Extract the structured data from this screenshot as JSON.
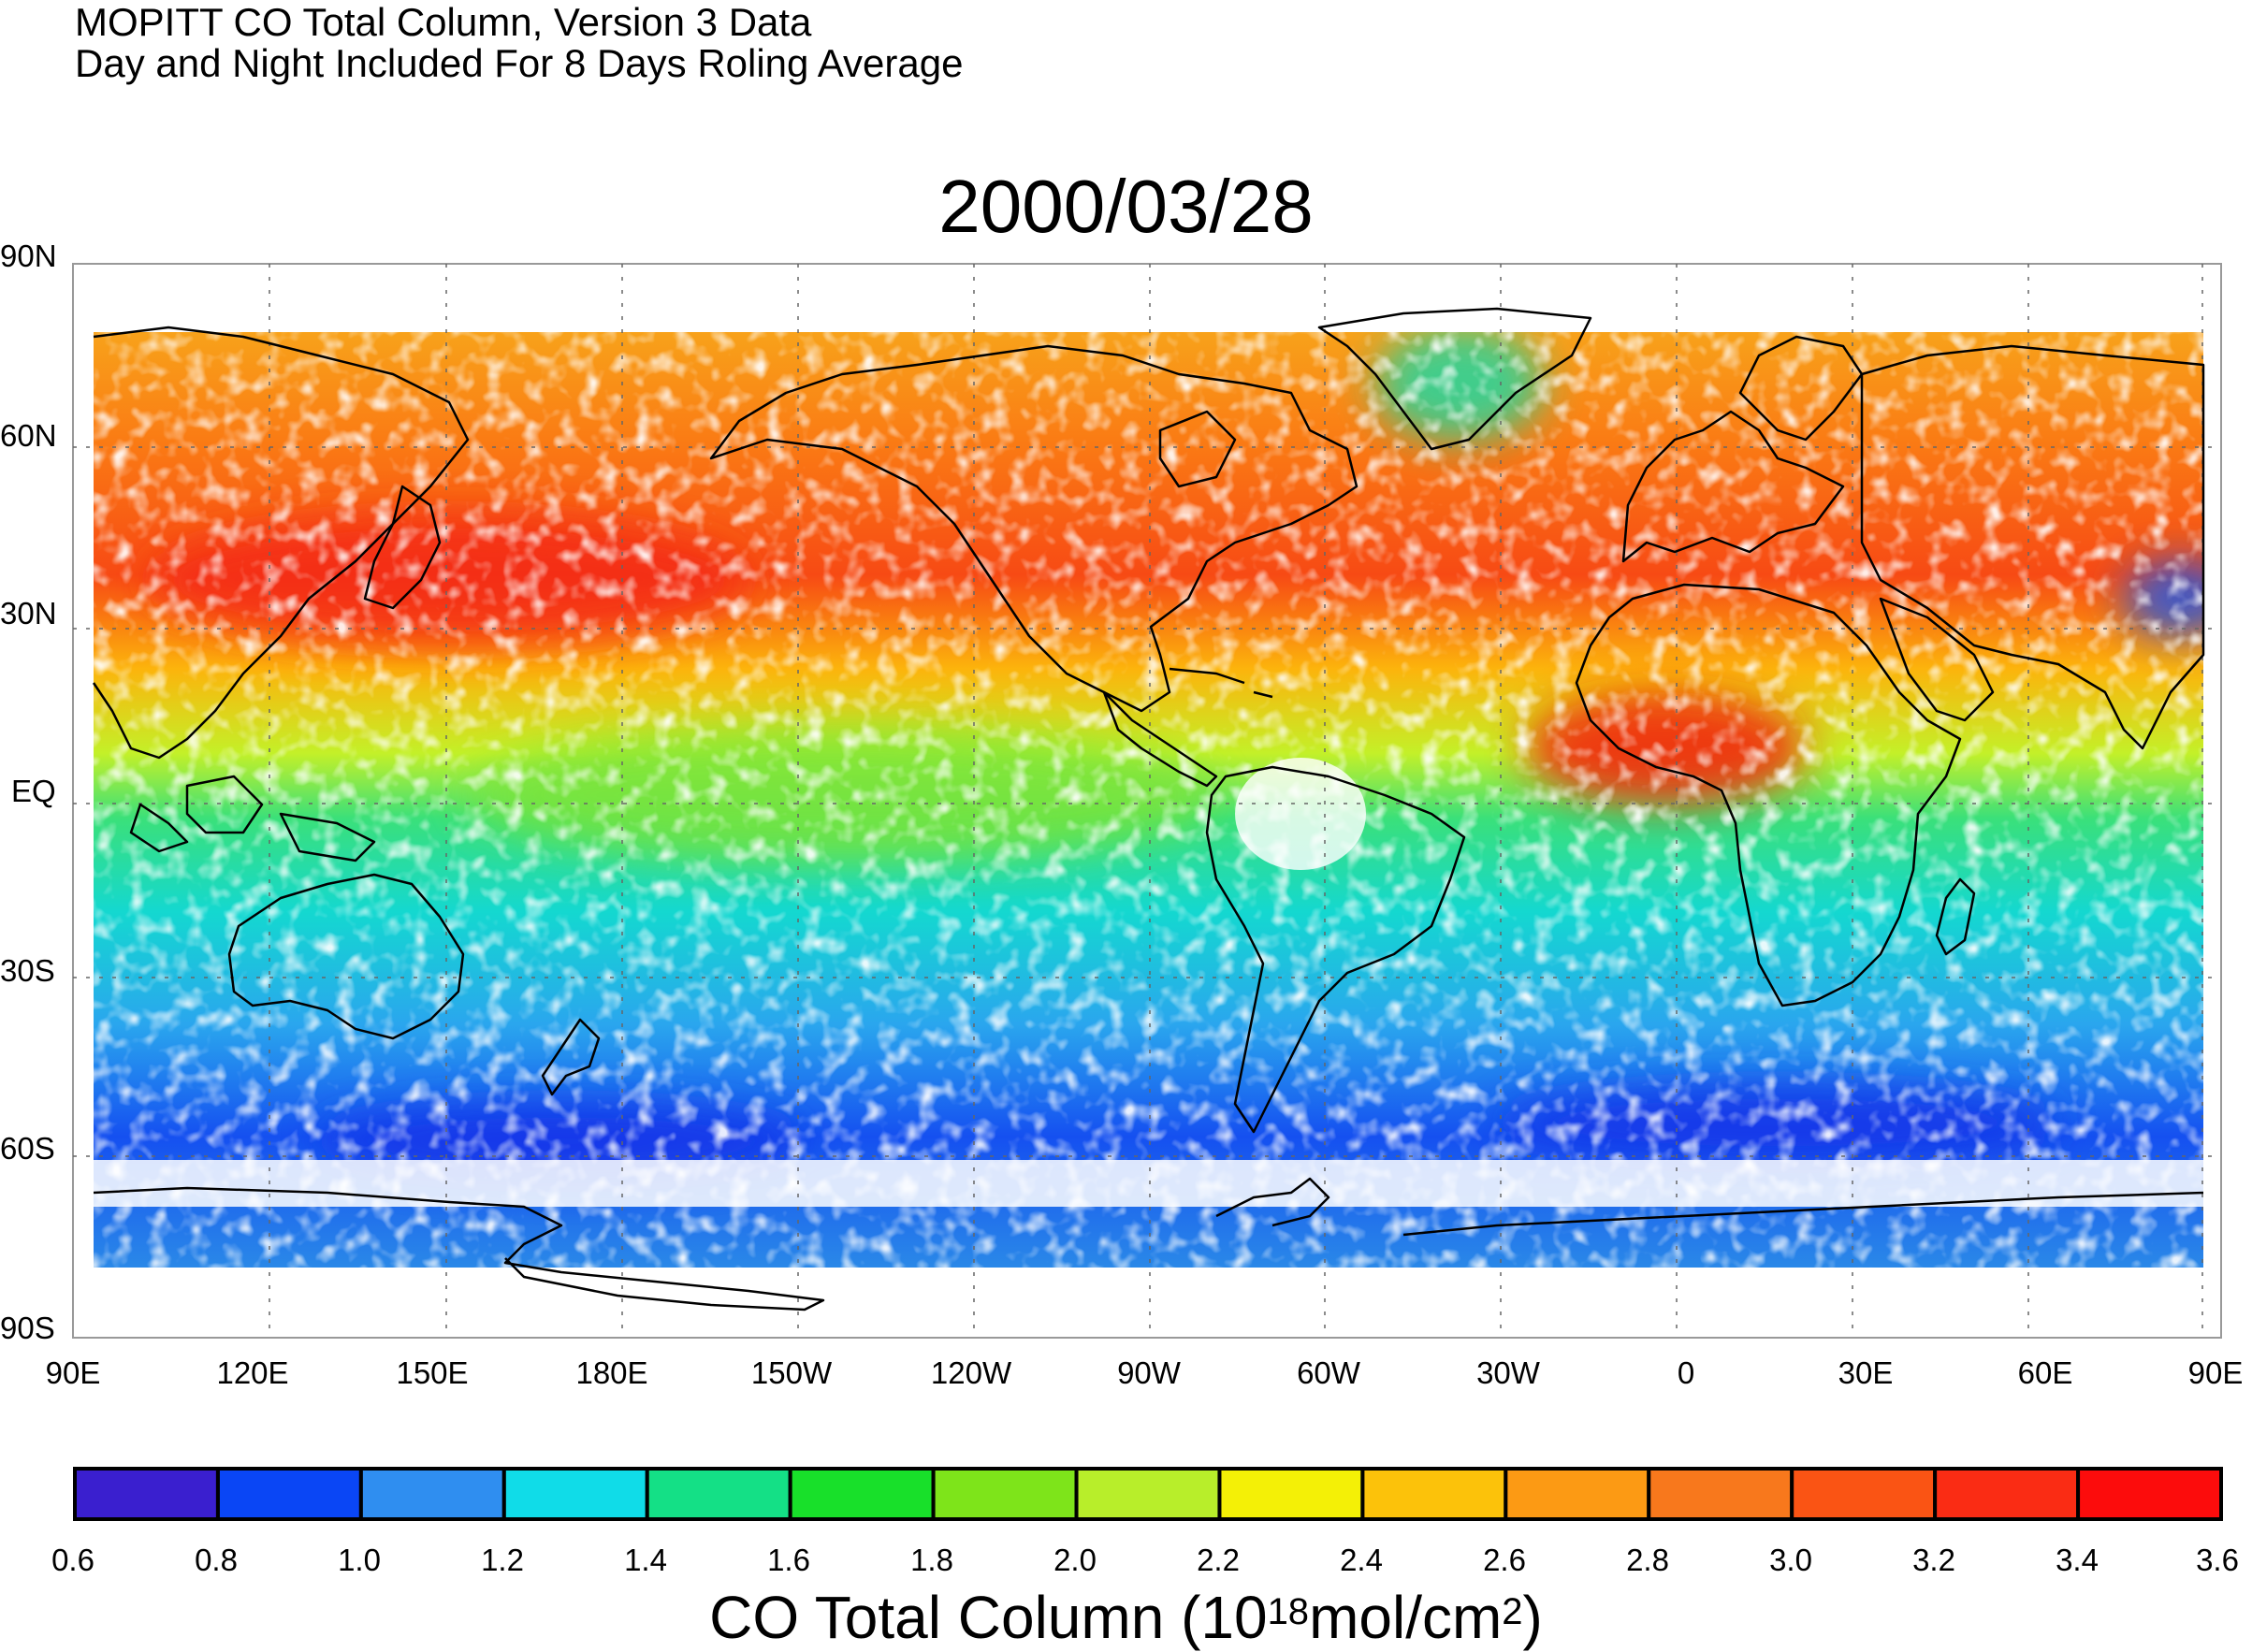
{
  "header": {
    "line1": "MOPITT CO Total Column, Version 3 Data",
    "line2": "Day and Night Included For 8 Days Roling Average",
    "date": "2000/03/28"
  },
  "lat_labels": [
    "90N",
    "60N",
    "30N",
    "EQ",
    "30S",
    "60S",
    "90S"
  ],
  "lon_labels": [
    "90E",
    "120E",
    "150E",
    "180E",
    "150W",
    "120W",
    "90W",
    "60W",
    "30W",
    "0",
    "30E",
    "60E",
    "90E"
  ],
  "colorbar": {
    "ticks": [
      "0.6",
      "0.8",
      "1.0",
      "1.2",
      "1.4",
      "1.6",
      "1.8",
      "2.0",
      "2.2",
      "2.4",
      "2.6",
      "2.8",
      "3.0",
      "3.2",
      "3.4",
      "3.6"
    ],
    "colors": [
      "#3a1fcf",
      "#0a46f5",
      "#2f8ef0",
      "#10dce8",
      "#14e086",
      "#18e02a",
      "#7ee41a",
      "#b8ee2a",
      "#f4f006",
      "#fcc20a",
      "#fc9a14",
      "#f8781c",
      "#fa5414",
      "#fa2c14",
      "#fc0c0c"
    ],
    "title_main": "CO Total Column (10",
    "title_exp1": "18",
    "title_mid": "mol/cm",
    "title_exp2": "2",
    "title_end": ")"
  }
}
